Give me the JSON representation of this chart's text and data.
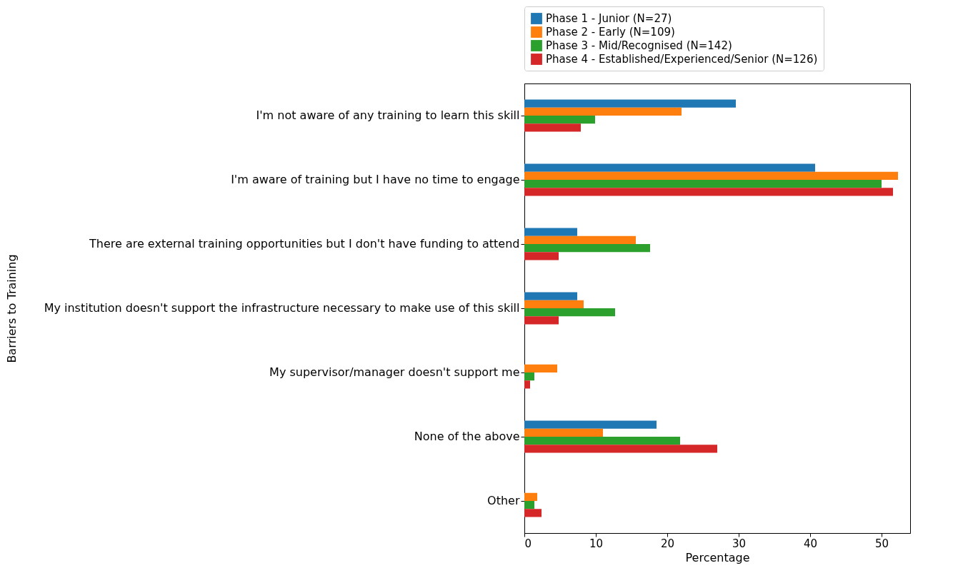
{
  "chart_data": {
    "type": "bar",
    "orientation": "horizontal",
    "xlabel": "Percentage",
    "ylabel": "Barriers to Training",
    "categories": [
      "I'm not aware of any training to learn this skill",
      "I'm aware of training but I have no time to engage",
      "There are external training opportunities but I don't have funding to attend",
      "My institution doesn't support the infrastructure necessary to make use of this skill",
      "My supervisor/manager doesn't support me",
      "None of the above",
      "Other"
    ],
    "series": [
      {
        "name": "Phase 1 - Junior (N=27)",
        "color": "#1f77b4",
        "values": [
          29.6,
          40.7,
          7.4,
          7.4,
          0,
          18.5,
          0
        ]
      },
      {
        "name": "Phase 2 - Early (N=109)",
        "color": "#ff7f0e",
        "values": [
          22.0,
          52.3,
          15.6,
          8.3,
          4.6,
          11.0,
          1.8
        ]
      },
      {
        "name": "Phase 3 - Mid/Recognised (N=142)",
        "color": "#2ca02c",
        "values": [
          9.9,
          50.0,
          17.6,
          12.7,
          1.4,
          21.8,
          1.4
        ]
      },
      {
        "name": "Phase 4 - Established/Experienced/Senior (N=126)",
        "color": "#d62728",
        "values": [
          7.9,
          51.6,
          4.8,
          4.8,
          0.8,
          27.0,
          2.4
        ]
      }
    ],
    "xlim": [
      0,
      54
    ],
    "xticks": [
      0,
      10,
      20,
      30,
      40,
      50
    ],
    "grid": false,
    "legend": "top"
  }
}
